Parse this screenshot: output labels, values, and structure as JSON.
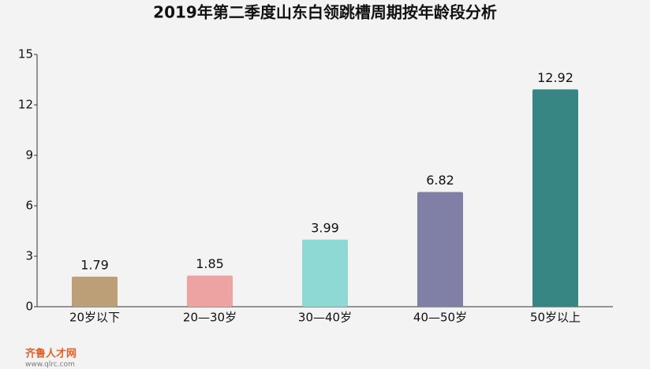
{
  "chart_data": {
    "type": "bar",
    "title": "2019年第二季度山东白领跳槽周期按年龄段分析",
    "categories": [
      "20岁以下",
      "20—30岁",
      "30—40岁",
      "40—50岁",
      "50岁以上"
    ],
    "values": [
      1.79,
      1.85,
      3.99,
      6.82,
      12.92
    ],
    "colors": [
      "#bc9f77",
      "#eea3a3",
      "#8fd9d5",
      "#8080a6",
      "#378684"
    ],
    "ylim": [
      0,
      15
    ],
    "yticks": [
      0,
      3,
      6,
      9,
      12,
      15
    ],
    "grid": false
  },
  "watermark": {
    "brand": "齐鲁人才网",
    "url": "www.qlrc.com"
  }
}
